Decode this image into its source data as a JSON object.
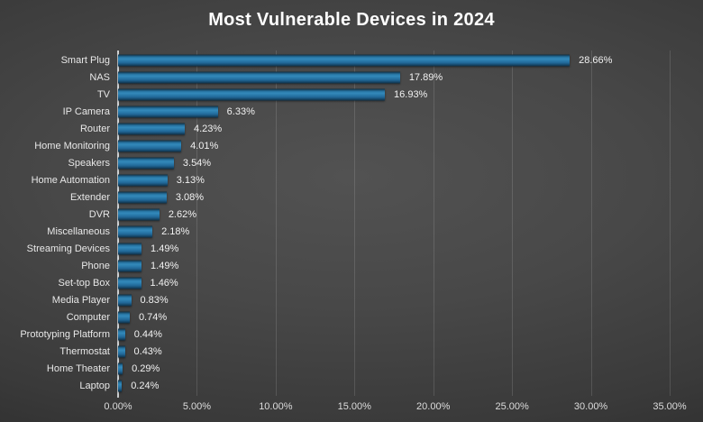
{
  "chart_data": {
    "type": "bar",
    "orientation": "horizontal",
    "title": "Most Vulnerable Devices in 2024",
    "categories": [
      "Smart Plug",
      "NAS",
      "TV",
      "IP Camera",
      "Router",
      "Home Monitoring",
      "Speakers",
      "Home Automation",
      "Extender",
      "DVR",
      "Miscellaneous",
      "Streaming Devices",
      "Phone",
      "Set-top Box",
      "Media Player",
      "Computer",
      "Prototyping Platform",
      "Thermostat",
      "Home Theater",
      "Laptop"
    ],
    "values": [
      28.66,
      17.89,
      16.93,
      6.33,
      4.23,
      4.01,
      3.54,
      3.13,
      3.08,
      2.62,
      2.18,
      1.49,
      1.49,
      1.46,
      0.83,
      0.74,
      0.44,
      0.43,
      0.29,
      0.24
    ],
    "value_labels": [
      "28.66%",
      "17.89%",
      "16.93%",
      "6.33%",
      "4.23%",
      "4.01%",
      "3.54%",
      "3.13%",
      "3.08%",
      "2.62%",
      "2.18%",
      "1.49%",
      "1.49%",
      "1.46%",
      "0.83%",
      "0.74%",
      "0.44%",
      "0.43%",
      "0.29%",
      "0.24%"
    ],
    "xlabel": "",
    "ylabel": "",
    "xlim": [
      0,
      35
    ],
    "x_tick_values": [
      0,
      5,
      10,
      15,
      20,
      25,
      30,
      35
    ],
    "x_tick_labels": [
      "0.00%",
      "5.00%",
      "10.00%",
      "15.00%",
      "20.00%",
      "25.00%",
      "30.00%",
      "35.00%"
    ],
    "grid": "vertical gridlines at 5% intervals",
    "legend": "none",
    "colors": {
      "bar_fill": "#2b7cad",
      "bar_highlight": "#3389ba",
      "bar_edge_dark": "#102f44",
      "background_center": "#505050",
      "background_corner": "#242424",
      "title_text": "#ffffff",
      "category_text": "#e8e8e8",
      "value_text": "#f2f2f2",
      "tick_text": "#dcdcdc",
      "axis_line": "#e1e4e6",
      "gridline": "rgba(255,255,255,0.13)"
    }
  }
}
